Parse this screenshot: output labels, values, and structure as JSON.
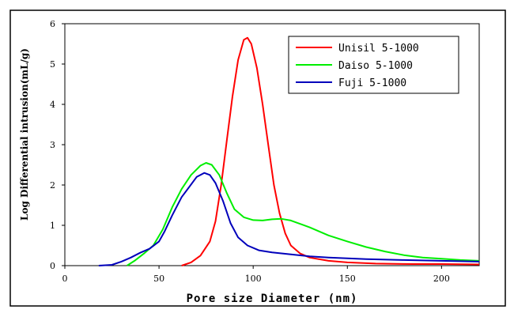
{
  "chart_data": {
    "type": "line",
    "title": "",
    "xlabel": "Pore size Diameter (nm)",
    "ylabel": "Log Differential intrusion(mL/g)",
    "xlim": [
      0,
      220
    ],
    "ylim": [
      0,
      6
    ],
    "xticks": [
      0,
      50,
      100,
      150,
      200
    ],
    "yticks": [
      0,
      1,
      2,
      3,
      4,
      5,
      6
    ],
    "grid": false,
    "legend_position": "top-right",
    "series": [
      {
        "name": "Unisil 5-1000",
        "color": "#ff0000",
        "points": [
          [
            62,
            0
          ],
          [
            67,
            0.08
          ],
          [
            72,
            0.25
          ],
          [
            77,
            0.6
          ],
          [
            80,
            1.1
          ],
          [
            83,
            2.0
          ],
          [
            86,
            3.1
          ],
          [
            89,
            4.2
          ],
          [
            92,
            5.1
          ],
          [
            95,
            5.6
          ],
          [
            97,
            5.65
          ],
          [
            99,
            5.5
          ],
          [
            102,
            4.9
          ],
          [
            105,
            4.0
          ],
          [
            108,
            3.0
          ],
          [
            111,
            2.0
          ],
          [
            114,
            1.3
          ],
          [
            117,
            0.8
          ],
          [
            120,
            0.5
          ],
          [
            125,
            0.3
          ],
          [
            130,
            0.2
          ],
          [
            140,
            0.12
          ],
          [
            150,
            0.08
          ],
          [
            165,
            0.05
          ],
          [
            185,
            0.04
          ],
          [
            200,
            0.04
          ],
          [
            220,
            0.03
          ]
        ]
      },
      {
        "name": "Daiso 5-1000",
        "color": "#00ee00",
        "points": [
          [
            33,
            0
          ],
          [
            37,
            0.12
          ],
          [
            42,
            0.3
          ],
          [
            47,
            0.5
          ],
          [
            52,
            0.9
          ],
          [
            57,
            1.45
          ],
          [
            62,
            1.9
          ],
          [
            67,
            2.25
          ],
          [
            72,
            2.48
          ],
          [
            75,
            2.55
          ],
          [
            78,
            2.5
          ],
          [
            82,
            2.25
          ],
          [
            86,
            1.8
          ],
          [
            90,
            1.4
          ],
          [
            95,
            1.2
          ],
          [
            100,
            1.13
          ],
          [
            105,
            1.12
          ],
          [
            110,
            1.15
          ],
          [
            115,
            1.16
          ],
          [
            120,
            1.12
          ],
          [
            130,
            0.95
          ],
          [
            140,
            0.75
          ],
          [
            150,
            0.6
          ],
          [
            160,
            0.46
          ],
          [
            170,
            0.35
          ],
          [
            180,
            0.26
          ],
          [
            190,
            0.2
          ],
          [
            200,
            0.17
          ],
          [
            210,
            0.14
          ],
          [
            220,
            0.12
          ]
        ]
      },
      {
        "name": "Fuji 5-1000",
        "color": "#0000bb",
        "points": [
          [
            18,
            0
          ],
          [
            25,
            0.02
          ],
          [
            30,
            0.1
          ],
          [
            35,
            0.2
          ],
          [
            40,
            0.32
          ],
          [
            45,
            0.42
          ],
          [
            50,
            0.6
          ],
          [
            53,
            0.85
          ],
          [
            57,
            1.25
          ],
          [
            62,
            1.7
          ],
          [
            66,
            1.95
          ],
          [
            70,
            2.2
          ],
          [
            74,
            2.3
          ],
          [
            77,
            2.25
          ],
          [
            80,
            2.05
          ],
          [
            84,
            1.6
          ],
          [
            88,
            1.05
          ],
          [
            92,
            0.7
          ],
          [
            97,
            0.5
          ],
          [
            103,
            0.38
          ],
          [
            110,
            0.33
          ],
          [
            120,
            0.28
          ],
          [
            130,
            0.23
          ],
          [
            140,
            0.2
          ],
          [
            160,
            0.16
          ],
          [
            180,
            0.14
          ],
          [
            200,
            0.12
          ],
          [
            220,
            0.1
          ]
        ]
      }
    ]
  }
}
